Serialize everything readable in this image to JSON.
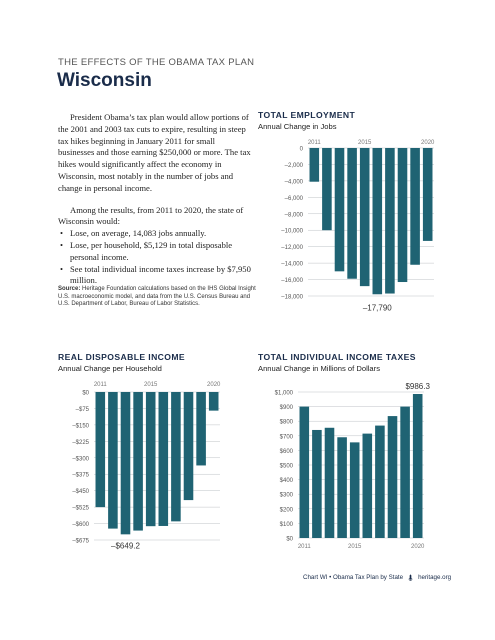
{
  "header": {
    "kicker": "THE EFFECTS OF THE OBAMA TAX PLAN",
    "state": "Wisconsin"
  },
  "intro": {
    "paragraph1": "President Obama’s tax plan would allow portions of the 2001 and 2003 tax cuts to expire, resulting in steep tax hikes beginning in January 2011 for small businesses and those earning $250,000 or more. The tax hikes would significantly affect the economy in Wisconsin, most notably in the number of jobs and change in personal income.",
    "paragraph2": "Among the results, from 2011 to 2020, the state of Wisconsin would:",
    "bullets": [
      "Lose, on average, 14,083 jobs annually.",
      "Lose, per household, $5,129 in total disposable personal income.",
      "See total individual income taxes increase by $7,950 million."
    ]
  },
  "source": {
    "label": "Source:",
    "text": "Heritage Foundation calculations based on the IHS Global Insight U.S. macroeconomic model, and data from the U.S. Census Bureau and U.S. Department of Labor, Bureau of Labor Statistics."
  },
  "chart_data": [
    {
      "id": "employment",
      "type": "bar",
      "title": "TOTAL EMPLOYMENT",
      "subtitle": "Annual Change in Jobs",
      "categories": [
        "2011",
        "2012",
        "2013",
        "2014",
        "2015",
        "2016",
        "2017",
        "2018",
        "2019",
        "2020"
      ],
      "x_tick_labels": [
        "2011",
        "2015",
        "2020"
      ],
      "values": [
        -4100,
        -10000,
        -15000,
        -15900,
        -16800,
        -17790,
        -17700,
        -16300,
        -14200,
        -11300
      ],
      "ylim": [
        -18000,
        0
      ],
      "yticks": [
        0,
        -2000,
        -4000,
        -6000,
        -8000,
        -10000,
        -12000,
        -14000,
        -16000,
        -18000
      ],
      "ytick_labels": [
        "0",
        "–2,000",
        "–4,000",
        "–6,000",
        "–8,000",
        "–10,000",
        "–12,000",
        "–14,000",
        "–16,000",
        "–18,000"
      ],
      "annotation": {
        "label": "–17,790",
        "index": 5
      },
      "bar_color": "#1f6373"
    },
    {
      "id": "disposable_income",
      "type": "bar",
      "title": "REAL DISPOSABLE INCOME",
      "subtitle": "Annual Change per Household",
      "categories": [
        "2011",
        "2012",
        "2013",
        "2014",
        "2015",
        "2016",
        "2017",
        "2018",
        "2019",
        "2020"
      ],
      "x_tick_labels": [
        "2011",
        "2015",
        "2020"
      ],
      "values": [
        -525,
        -623,
        -649.2,
        -632,
        -612,
        -611,
        -590,
        -493,
        -335,
        -85
      ],
      "ylim": [
        -675,
        0
      ],
      "yticks": [
        0,
        -75,
        -150,
        -225,
        -300,
        -375,
        -450,
        -525,
        -600,
        -675
      ],
      "ytick_labels": [
        "$0",
        "–$75",
        "–$150",
        "–$225",
        "–$300",
        "–$375",
        "–$450",
        "–$525",
        "–$600",
        "–$675"
      ],
      "annotation": {
        "label": "–$649.2",
        "index": 2
      },
      "bar_color": "#1f6373"
    },
    {
      "id": "income_taxes",
      "type": "bar",
      "title": "TOTAL INDIVIDUAL INCOME TAXES",
      "subtitle": "Annual Change in Millions of Dollars",
      "categories": [
        "2011",
        "2012",
        "2013",
        "2014",
        "2015",
        "2016",
        "2017",
        "2018",
        "2019",
        "2020"
      ],
      "x_tick_labels": [
        "2011",
        "2015",
        "2020"
      ],
      "values": [
        900,
        740,
        755,
        690,
        655,
        715,
        770,
        835,
        900,
        986.3
      ],
      "ylim": [
        0,
        1000
      ],
      "yticks": [
        0,
        100,
        200,
        300,
        400,
        500,
        600,
        700,
        800,
        900,
        1000
      ],
      "ytick_labels": [
        "$0",
        "$100",
        "$200",
        "$300",
        "$400",
        "$500",
        "$600",
        "$700",
        "$800",
        "$900",
        "$1,000"
      ],
      "annotation": {
        "label": "$986.3",
        "index": 9
      },
      "bar_color": "#1f6373"
    }
  ],
  "footer": {
    "chart_ref": "Chart WI • Obama Tax Plan by State",
    "site": "heritage.org",
    "logo_icon": "heritage-bell-icon"
  }
}
